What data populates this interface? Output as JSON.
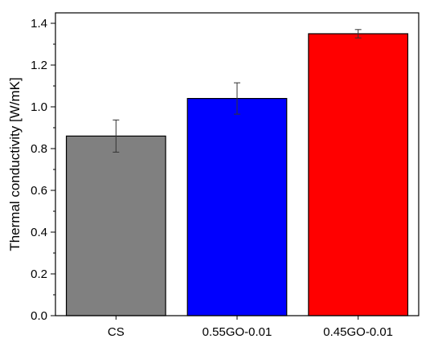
{
  "chart_data": {
    "type": "bar",
    "title": "",
    "xlabel": "",
    "ylabel": "Thermal conductivity [W/mK]",
    "categories": [
      "CS",
      "0.55GO-0.01",
      "0.45GO-0.01"
    ],
    "values": [
      0.86,
      1.04,
      1.35
    ],
    "errors": [
      0.077,
      0.075,
      0.02
    ],
    "colors": [
      "#808080",
      "#0000ff",
      "#ff0000"
    ],
    "ylim": [
      0,
      1.45
    ],
    "yticks": [
      0.0,
      0.2,
      0.4,
      0.6,
      0.8,
      1.0,
      1.2,
      1.4
    ],
    "ytick_labels": [
      "0.0",
      "0.2",
      "0.4",
      "0.6",
      "0.8",
      "1.0",
      "1.2",
      "1.4"
    ],
    "grid": false,
    "legend": "none"
  }
}
